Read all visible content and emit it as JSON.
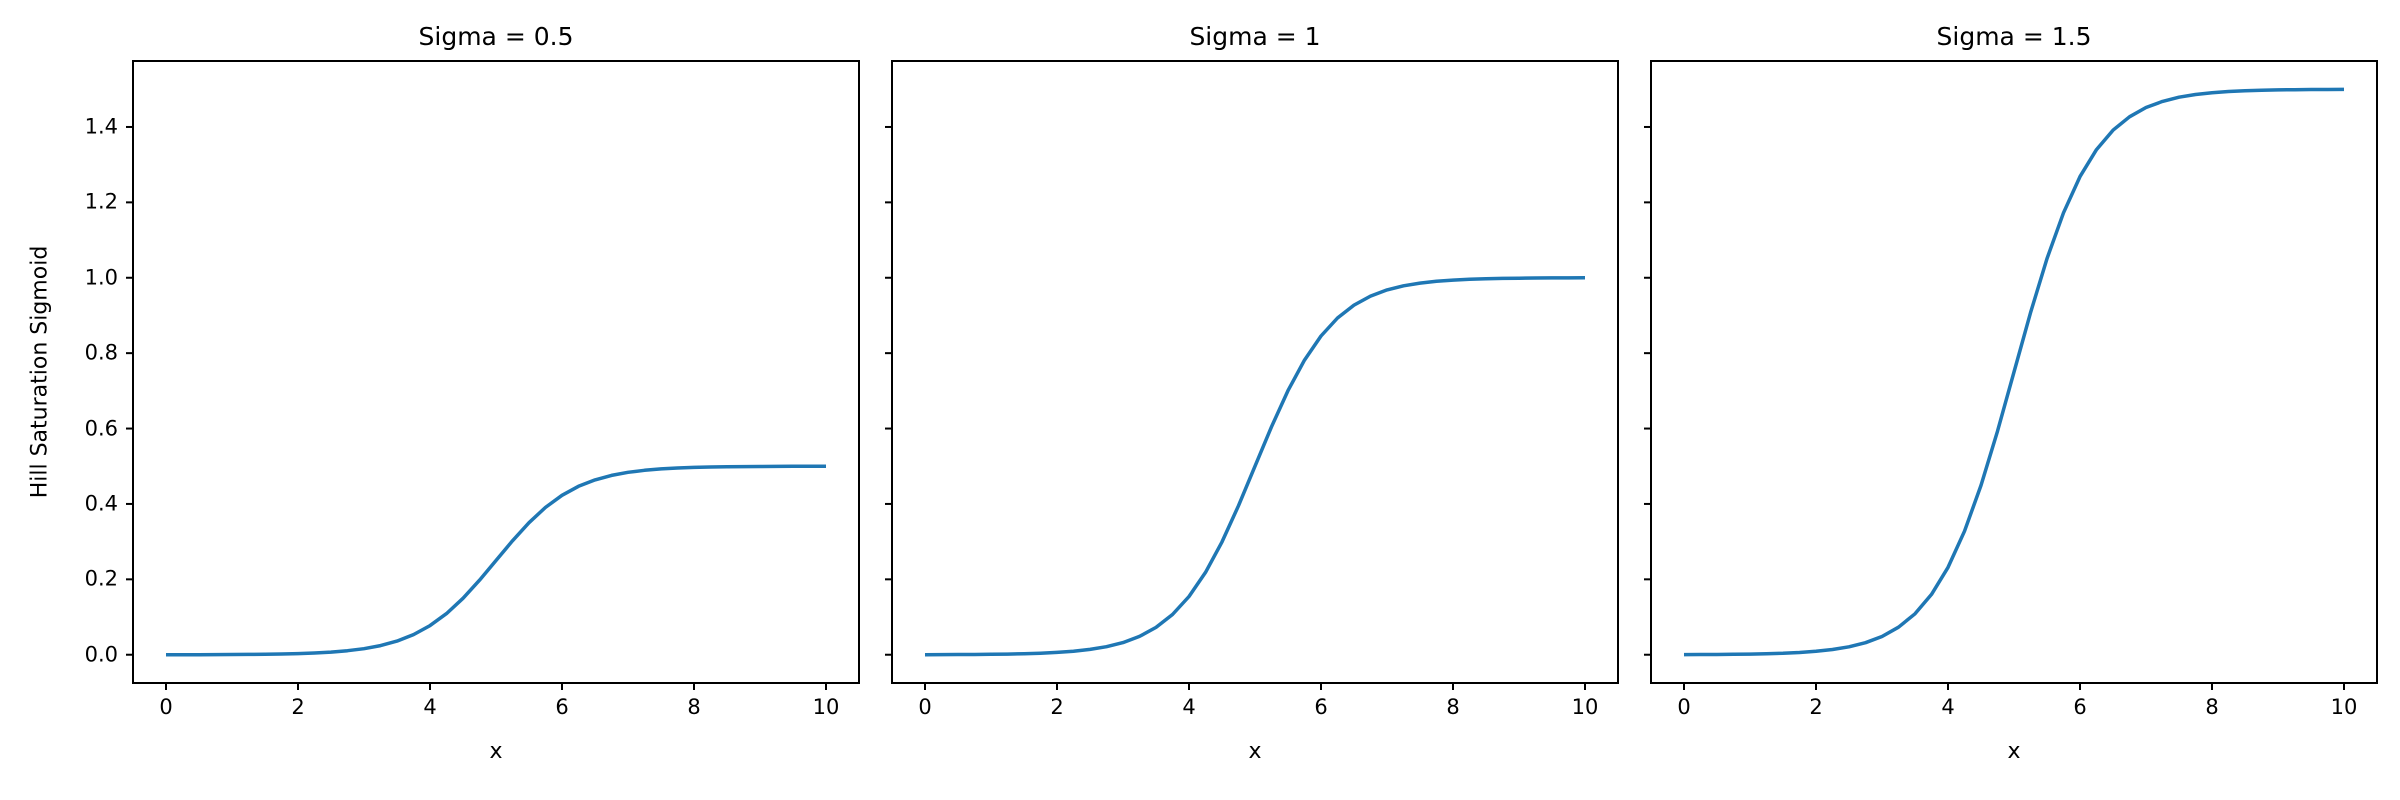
{
  "chart_data": {
    "type": "line",
    "subplot_titles": [
      "Sigma = 0.5",
      "Sigma = 1",
      "Sigma = 1.5"
    ],
    "xlabel": "x",
    "ylabel": "Hill Saturation Sigmoid",
    "xlim": [
      -0.5,
      10.5
    ],
    "ylim": [
      -0.075,
      1.575
    ],
    "x_tick_values": [
      0,
      2,
      4,
      6,
      8,
      10
    ],
    "x_tick_labels": [
      "0",
      "2",
      "4",
      "6",
      "8",
      "10"
    ],
    "y_tick_values": [
      0.0,
      0.2,
      0.4,
      0.6,
      0.8,
      1.0,
      1.2,
      1.4
    ],
    "y_tick_labels": [
      "0.0",
      "0.2",
      "0.4",
      "0.6",
      "0.8",
      "1.0",
      "1.2",
      "1.4"
    ],
    "y_tick_labels_only_on_first_subplot": true,
    "grid": false,
    "legend": false,
    "line_color": "#1f77b4",
    "background": "#ffffff",
    "x": [
      0,
      0.25,
      0.5,
      0.75,
      1,
      1.25,
      1.5,
      1.75,
      2,
      2.25,
      2.5,
      2.75,
      3,
      3.25,
      3.5,
      3.75,
      4,
      4.25,
      4.5,
      4.75,
      5,
      5.25,
      5.5,
      5.75,
      6,
      6.25,
      6.5,
      6.75,
      7,
      7.25,
      7.5,
      7.75,
      8,
      8.25,
      8.5,
      8.75,
      9,
      9.25,
      9.5,
      9.75,
      10
    ],
    "series": [
      {
        "name": "Sigma = 0.5",
        "sigma": 0.5,
        "values": [
          0.0001,
          0.0002,
          0.0002,
          0.0004,
          0.0006,
          0.0009,
          0.0013,
          0.002,
          0.003,
          0.0046,
          0.007,
          0.0107,
          0.0161,
          0.0243,
          0.0362,
          0.0533,
          0.0772,
          0.1092,
          0.1497,
          0.1977,
          0.25,
          0.3023,
          0.3503,
          0.3908,
          0.4228,
          0.4467,
          0.4638,
          0.4757,
          0.4839,
          0.4893,
          0.493,
          0.4954,
          0.497,
          0.498,
          0.4987,
          0.4991,
          0.4994,
          0.4996,
          0.4998,
          0.4998,
          0.4999
        ]
      },
      {
        "name": "Sigma = 1",
        "sigma": 1,
        "values": [
          0.0002,
          0.0003,
          0.0005,
          0.0007,
          0.0011,
          0.0017,
          0.0026,
          0.004,
          0.0061,
          0.0092,
          0.0141,
          0.0214,
          0.0323,
          0.0486,
          0.0724,
          0.1067,
          0.1545,
          0.2184,
          0.2994,
          0.3953,
          0.5,
          0.6047,
          0.7006,
          0.7816,
          0.8455,
          0.8933,
          0.9276,
          0.9514,
          0.9677,
          0.9786,
          0.9859,
          0.9908,
          0.9939,
          0.996,
          0.9974,
          0.9983,
          0.9989,
          0.9993,
          0.9995,
          0.9997,
          0.9998
        ]
      },
      {
        "name": "Sigma = 1.5",
        "sigma": 1.5,
        "values": [
          0.0003,
          0.0005,
          0.0007,
          0.0011,
          0.0017,
          0.0026,
          0.0039,
          0.006,
          0.0091,
          0.0139,
          0.0211,
          0.032,
          0.0484,
          0.0729,
          0.1086,
          0.16,
          0.2317,
          0.3276,
          0.4491,
          0.5929,
          0.75,
          0.907,
          1.0509,
          1.1724,
          1.2683,
          1.34,
          1.3914,
          1.4271,
          1.4516,
          1.4679,
          1.4789,
          1.4861,
          1.4909,
          1.494,
          1.4961,
          1.4974,
          1.4983,
          1.4989,
          1.4993,
          1.4995,
          1.4997
        ]
      }
    ]
  }
}
